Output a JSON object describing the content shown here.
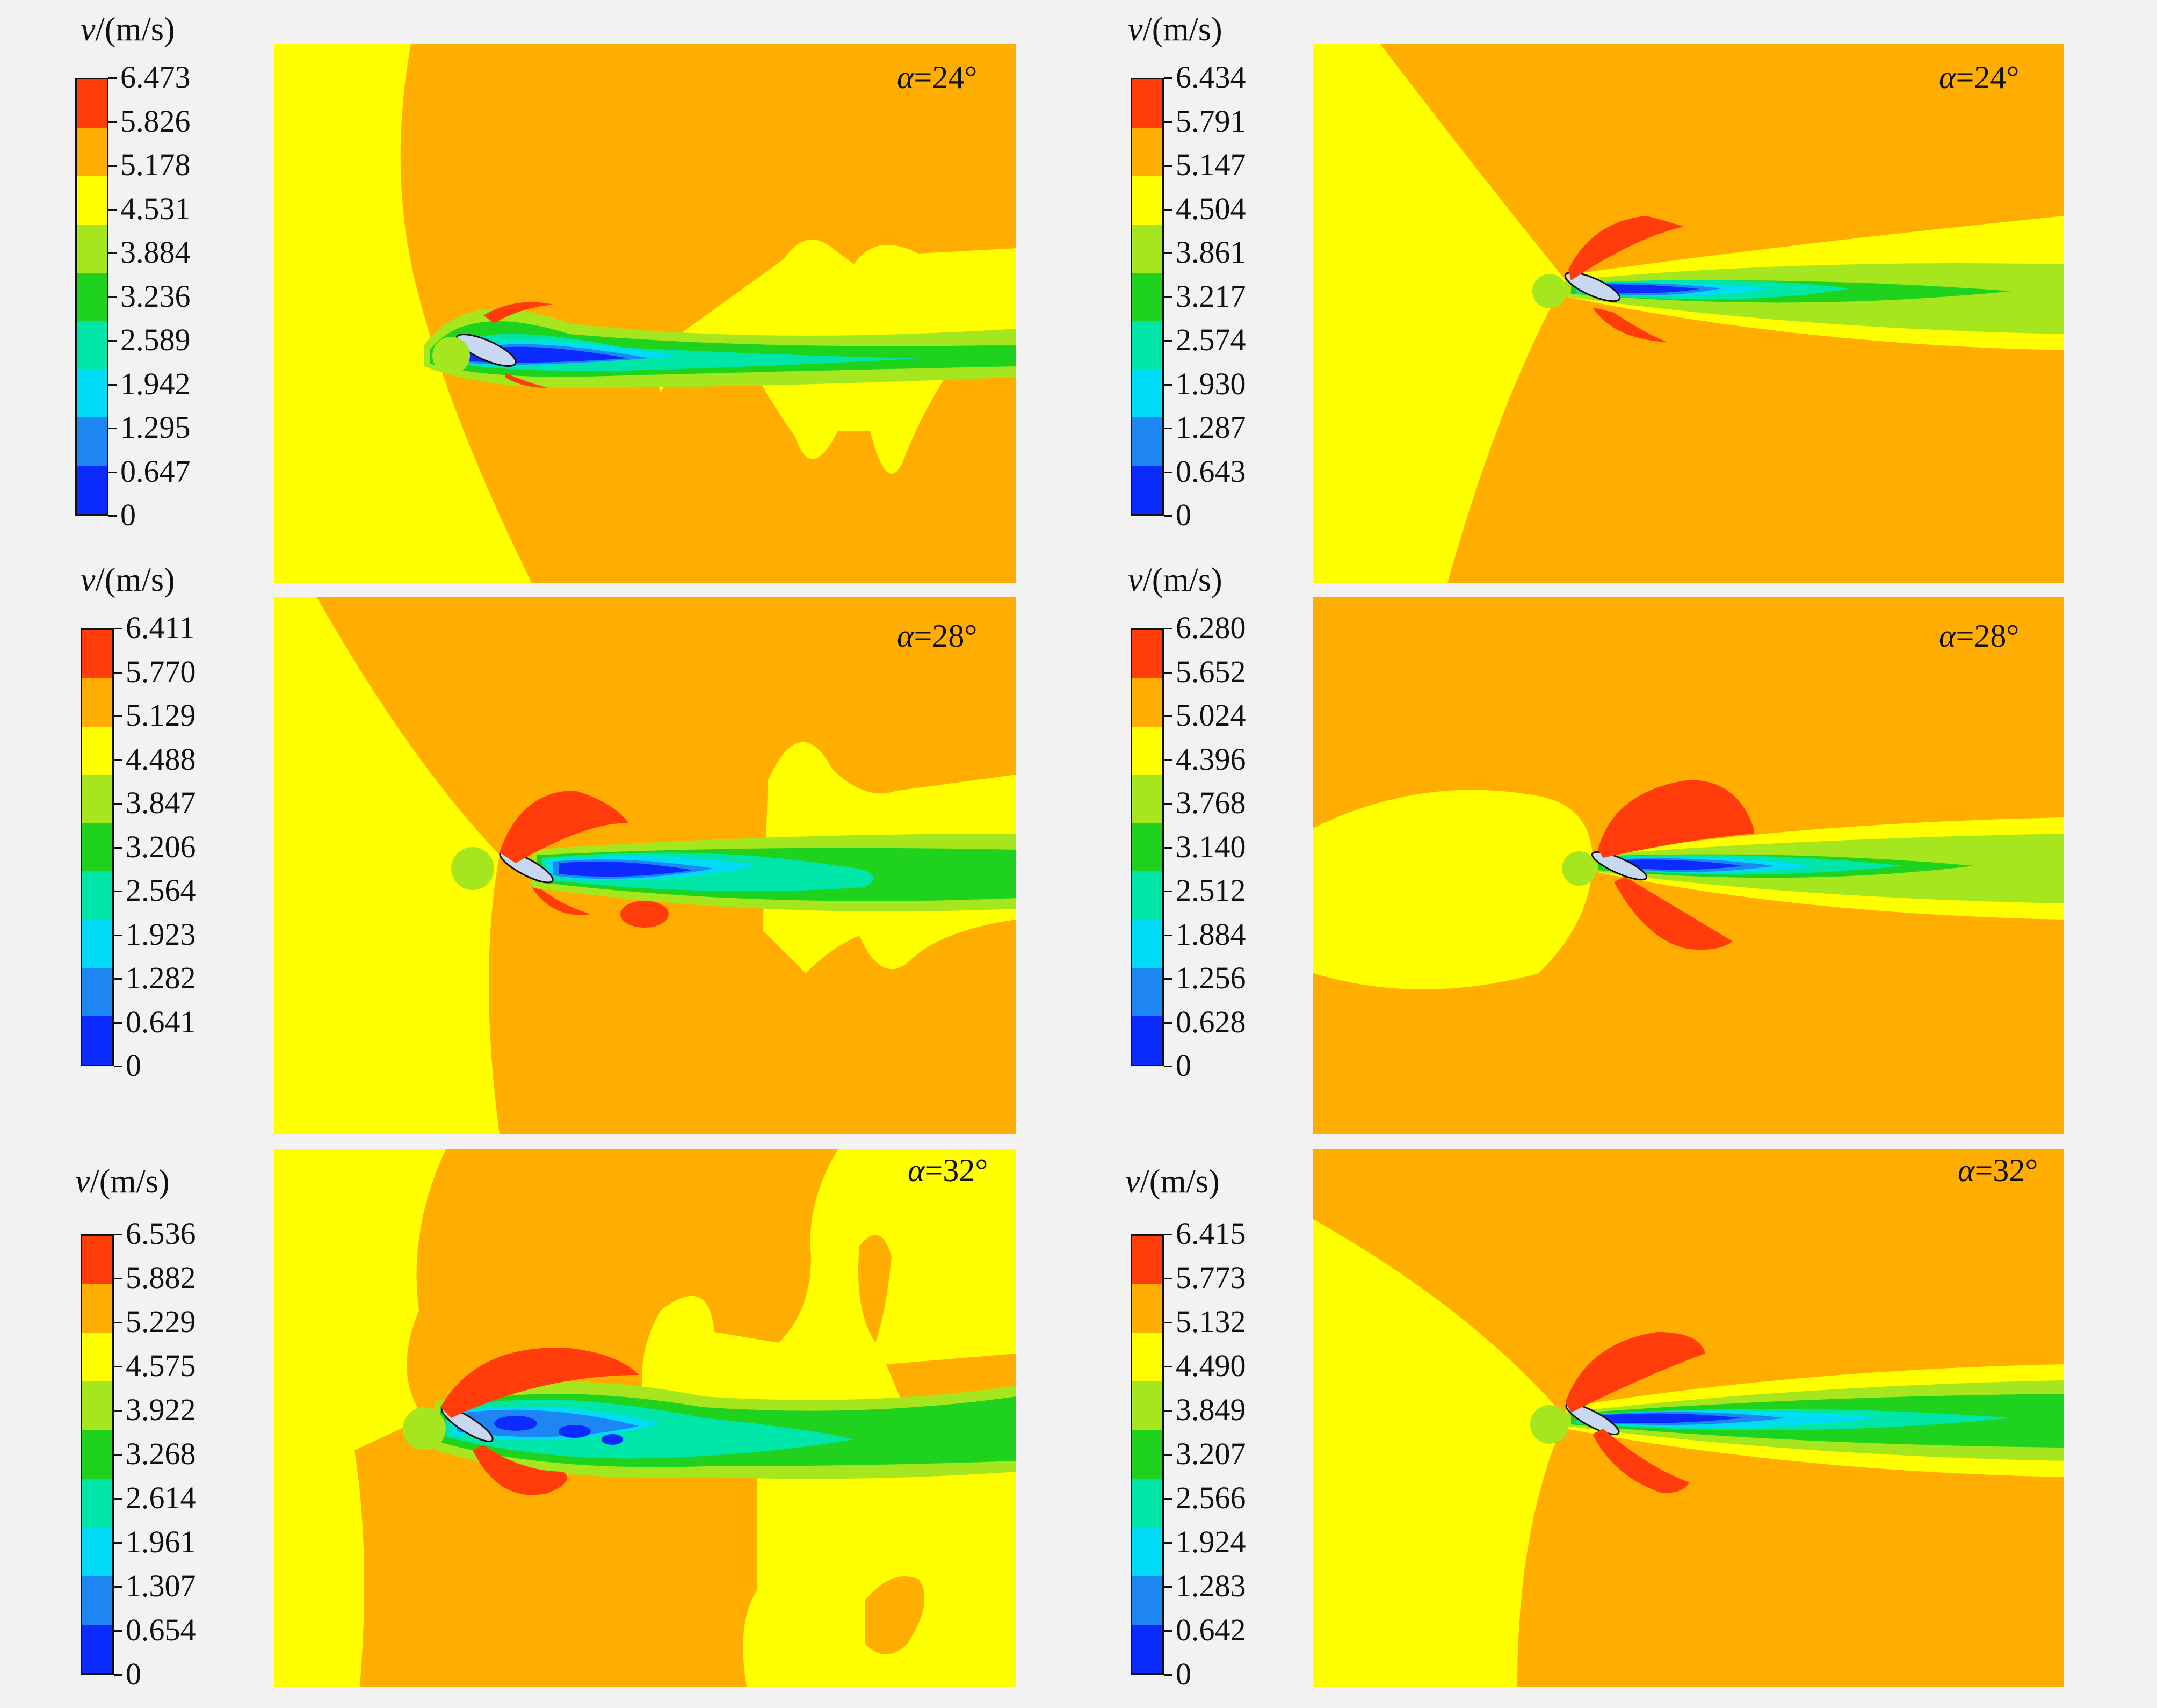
{
  "colors": {
    "levels_low_to_high": [
      "#0b2bff",
      "#1e86f2",
      "#00dcf8",
      "#00e6a8",
      "#1ed21e",
      "#a5e61e",
      "#ffff00",
      "#ffad00",
      "#ff3c0a"
    ],
    "background": "#f2f2f2"
  },
  "panels": [
    {
      "title_var": "v",
      "title_unit": "/(m/s)",
      "alpha_symbol": "α",
      "alpha_value": "=24°",
      "legend_labels": [
        "6.473",
        "5.826",
        "5.178",
        "4.531",
        "3.884",
        "3.236",
        "2.589",
        "1.942",
        "1.295",
        "0.647",
        "0"
      ]
    },
    {
      "title_var": "v",
      "title_unit": "/(m/s)",
      "alpha_symbol": "α",
      "alpha_value": "=24°",
      "legend_labels": [
        "6.434",
        "5.791",
        "5.147",
        "4.504",
        "3.861",
        "3.217",
        "2.574",
        "1.930",
        "1.287",
        "0.643",
        "0"
      ]
    },
    {
      "title_var": "v",
      "title_unit": "/(m/s)",
      "alpha_symbol": "α",
      "alpha_value": "=28°",
      "legend_labels": [
        "6.411",
        "5.770",
        "5.129",
        "4.488",
        "3.847",
        "3.206",
        "2.564",
        "1.923",
        "1.282",
        "0.641",
        "0"
      ]
    },
    {
      "title_var": "v",
      "title_unit": "/(m/s)",
      "alpha_symbol": "α",
      "alpha_value": "=28°",
      "legend_labels": [
        "6.280",
        "5.652",
        "5.024",
        "4.396",
        "3.768",
        "3.140",
        "2.512",
        "1.884",
        "1.256",
        "0.628",
        "0"
      ]
    },
    {
      "title_var": "v",
      "title_unit": "/(m/s)",
      "alpha_symbol": "α",
      "alpha_value": "=32°",
      "legend_labels": [
        "6.536",
        "5.882",
        "5.229",
        "4.575",
        "3.922",
        "3.268",
        "2.614",
        "1.961",
        "1.307",
        "0.654",
        "0"
      ]
    },
    {
      "title_var": "v",
      "title_unit": "/(m/s)",
      "alpha_symbol": "α",
      "alpha_value": "=32°",
      "legend_labels": [
        "6.415",
        "5.773",
        "5.132",
        "4.490",
        "3.849",
        "3.207",
        "2.566",
        "1.924",
        "1.283",
        "0.642",
        "0"
      ]
    }
  ]
}
